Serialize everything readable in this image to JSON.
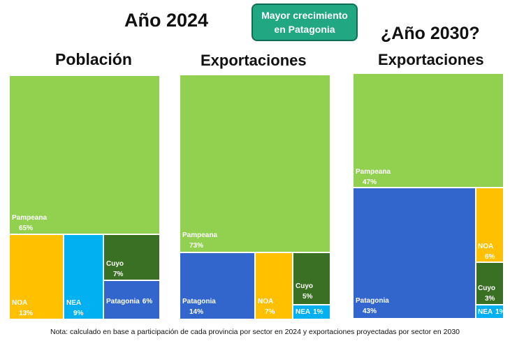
{
  "header": {
    "year_title": "Año 2024",
    "badge": "Mayor crecimiento en Patagonia",
    "future_title": "¿Año 2030?"
  },
  "colors": {
    "Pampeana": "#92d050",
    "NOA": "#ffc000",
    "NEA": "#00b0f0",
    "Cuyo": "#3a7023",
    "Patagonia": "#3366cc"
  },
  "chart_data": [
    {
      "type": "treemap",
      "title": "Población",
      "labels": [
        "Pampeana",
        "NOA",
        "NEA",
        "Cuyo",
        "Patagonia"
      ],
      "values": [
        65,
        13,
        9,
        7,
        6
      ],
      "value_labels": [
        "65%",
        "13%",
        "9%",
        "7%",
        "6%"
      ]
    },
    {
      "type": "treemap",
      "title": "Exportaciones",
      "labels": [
        "Pampeana",
        "Patagonia",
        "NOA",
        "Cuyo",
        "NEA"
      ],
      "values": [
        73,
        14,
        7,
        5,
        1
      ],
      "value_labels": [
        "73%",
        "14%",
        "7%",
        "5%",
        "1%"
      ]
    },
    {
      "type": "treemap",
      "title": "Exportaciones",
      "labels": [
        "Pampeana",
        "Patagonia",
        "NOA",
        "Cuyo",
        "NEA"
      ],
      "values": [
        47,
        43,
        6,
        3,
        1
      ],
      "value_labels": [
        "47%",
        "43%",
        "6%",
        "3%",
        "1%"
      ]
    }
  ],
  "note": "Nota: calculado en base a participación de cada provincia por sector en 2024 y exportaciones proyectadas por sector en 2030"
}
